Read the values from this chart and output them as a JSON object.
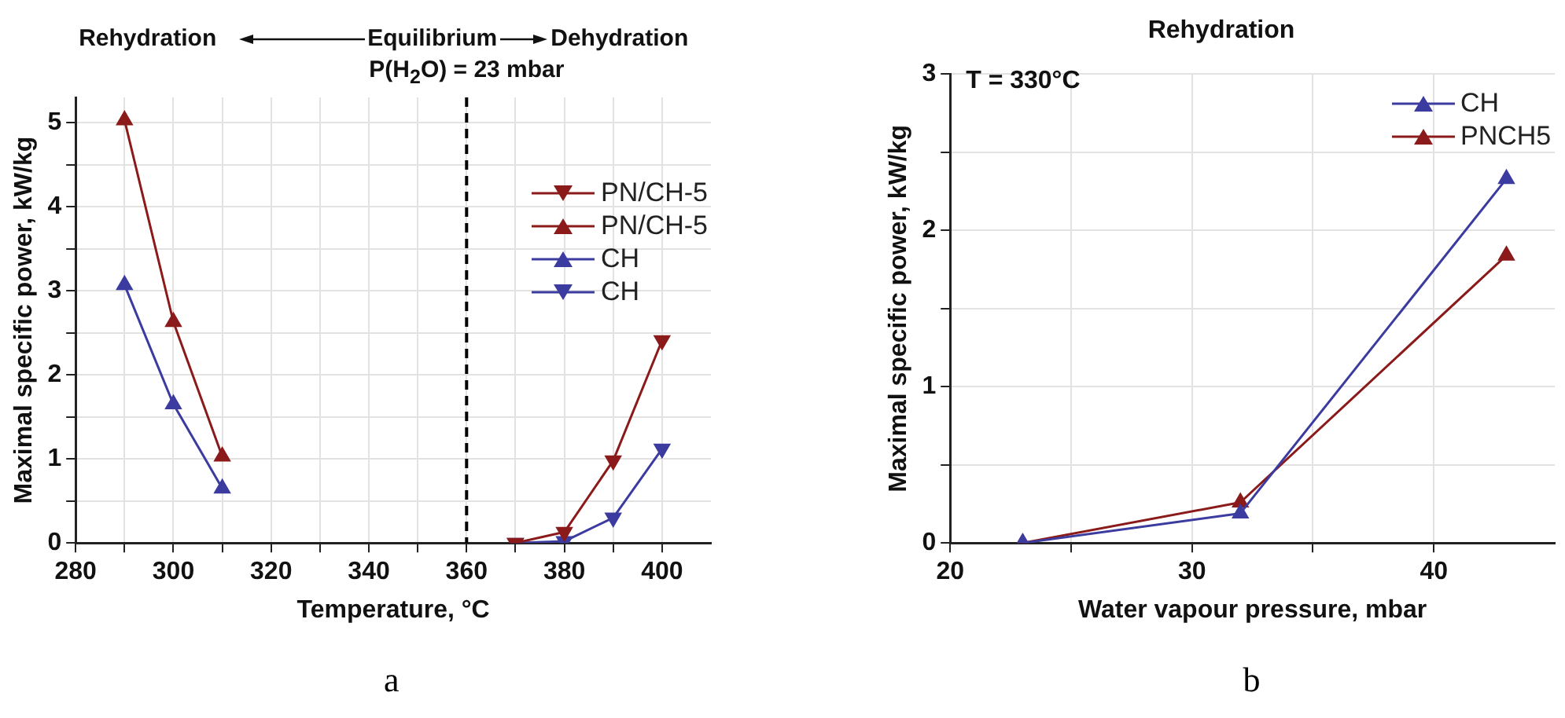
{
  "chart_data": [
    {
      "type": "line",
      "xlabel": "Temperature, °C",
      "ylabel": "Maximal specific power, kW/kg",
      "xlim": [
        280,
        410
      ],
      "xticks": [
        280,
        {
          "value": 290,
          "label": null
        },
        300,
        {
          "value": 310,
          "label": null
        },
        320,
        {
          "value": 330,
          "label": null
        },
        340,
        {
          "value": 350,
          "label": null
        },
        360,
        {
          "value": 370,
          "label": null
        },
        380,
        {
          "value": 390,
          "label": null
        },
        400
      ],
      "ylim": [
        0,
        5.3
      ],
      "yticks": [
        0,
        {
          "value": 0.5,
          "label": null
        },
        1,
        {
          "value": 1.5,
          "label": null
        },
        2,
        {
          "value": 2.5,
          "label": null
        },
        3,
        {
          "value": 3.5,
          "label": null
        },
        4,
        {
          "value": 4.5,
          "label": null
        },
        5
      ],
      "grid": true,
      "legend": "top right",
      "marker": "triangle",
      "line_style": "solid",
      "series": [
        {
          "name": "PN/CH-5",
          "color": "#8b1a1a",
          "marker": "triangle-down",
          "x": [
            370,
            380,
            390,
            400
          ],
          "values": [
            0,
            0.13,
            0.98,
            2.41
          ]
        },
        {
          "name": "PN/CH-5",
          "color": "#8b1a1a",
          "x": [
            290,
            300,
            310
          ],
          "values": [
            5.03,
            2.63,
            1.03
          ]
        },
        {
          "name": "CH",
          "color": "#3b3ba0",
          "x": [
            290,
            300,
            310
          ],
          "values": [
            3.07,
            1.65,
            0.65
          ]
        },
        {
          "name": "CH",
          "color": "#3b3ba0",
          "marker": "triangle-down",
          "x": [
            370,
            380,
            390,
            400
          ],
          "values": [
            0,
            0.02,
            0.3,
            1.12
          ]
        }
      ],
      "ref_lines": [
        {
          "axis": "x",
          "value": 360,
          "color": "#000000",
          "line_style": "dashed"
        }
      ],
      "annotations": [
        "Rehydration",
        "Equilibrium",
        "Dehydration",
        "P(H$_{2}$O) = 23 mbar",
        "a"
      ]
    },
    {
      "type": "line",
      "title": "Rehydration",
      "xlabel": "Water vapour pressure, mbar",
      "ylabel": "Maximal specific power, kW/kg",
      "xlim": [
        20,
        45
      ],
      "xticks": [
        20,
        {
          "value": 25,
          "label": null
        },
        30,
        {
          "value": 35,
          "label": null
        },
        40
      ],
      "ylim": [
        0,
        3
      ],
      "yticks": [
        0,
        {
          "value": 0.5,
          "label": null
        },
        1,
        {
          "value": 1.5,
          "label": null
        },
        2,
        {
          "value": 2.5,
          "label": null
        },
        3
      ],
      "grid": true,
      "legend": "top right",
      "marker": "triangle",
      "line_style": "solid",
      "series": [
        {
          "name": "CH",
          "color": "#3b3ba0",
          "x": [
            23,
            32,
            43
          ],
          "values": [
            0,
            0.19,
            2.33
          ]
        },
        {
          "name": "PNCH5",
          "color": "#8b1a1a",
          "x": [
            23,
            32,
            43
          ],
          "values": [
            0,
            0.26,
            1.84
          ]
        }
      ],
      "annotations": [
        "T = 330°C",
        "b"
      ]
    }
  ]
}
